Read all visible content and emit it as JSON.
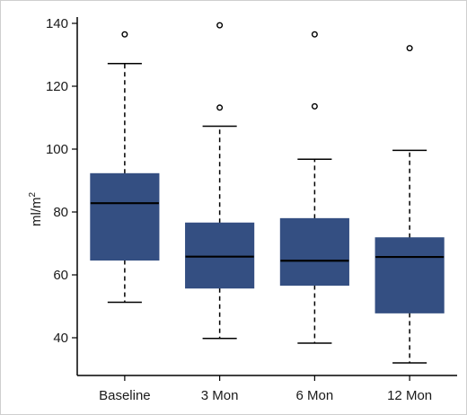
{
  "chart_data": {
    "type": "boxplot",
    "ylabel": "ml/m",
    "ylabel_superscript": "2",
    "xlabel": "",
    "ylim": [
      28,
      142
    ],
    "yticks": [
      40,
      60,
      80,
      100,
      120,
      140
    ],
    "categories": [
      "Baseline",
      "3 Mon",
      "6 Mon",
      "12 Mon"
    ],
    "box_color": "#344f82",
    "median_color": "#000000",
    "boxes": [
      {
        "category": "Baseline",
        "whisker_low": 51.3,
        "q1": 64.7,
        "median": 82.8,
        "q3": 92.2,
        "whisker_high": 127.2,
        "outliers": [
          136.5
        ]
      },
      {
        "category": "3 Mon",
        "whisker_low": 39.8,
        "q1": 55.8,
        "median": 65.8,
        "q3": 76.5,
        "whisker_high": 107.3,
        "outliers": [
          113.2,
          139.4
        ]
      },
      {
        "category": "6 Mon",
        "whisker_low": 38.3,
        "q1": 56.7,
        "median": 64.5,
        "q3": 77.9,
        "whisker_high": 96.8,
        "outliers": [
          113.6,
          136.5
        ]
      },
      {
        "category": "12 Mon",
        "whisker_low": 32.0,
        "q1": 47.9,
        "median": 65.7,
        "q3": 71.8,
        "whisker_high": 99.6,
        "outliers": [
          132.1
        ]
      }
    ]
  }
}
